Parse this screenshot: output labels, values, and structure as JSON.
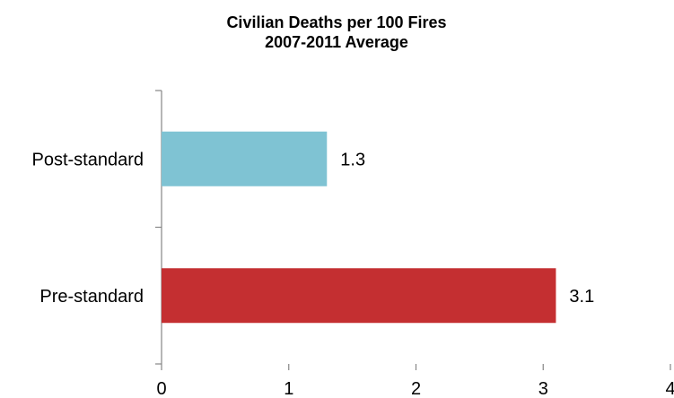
{
  "chart_data": {
    "type": "bar",
    "orientation": "horizontal",
    "title": "Civilian Deaths per 100 Fires",
    "subtitle": "2007-2011 Average",
    "categories": [
      "Post-standard",
      "Pre-standard"
    ],
    "values": [
      1.3,
      3.1
    ],
    "value_labels": [
      "1.3",
      "3.1"
    ],
    "bar_colors": [
      "#7fc3d3",
      "#c42f31"
    ],
    "xlim": [
      0,
      4
    ],
    "x_ticks": [
      0,
      1,
      2,
      3,
      4
    ],
    "x_tick_labels": [
      "0",
      "1",
      "2",
      "3",
      "4"
    ],
    "grid": false,
    "legend": "none"
  }
}
